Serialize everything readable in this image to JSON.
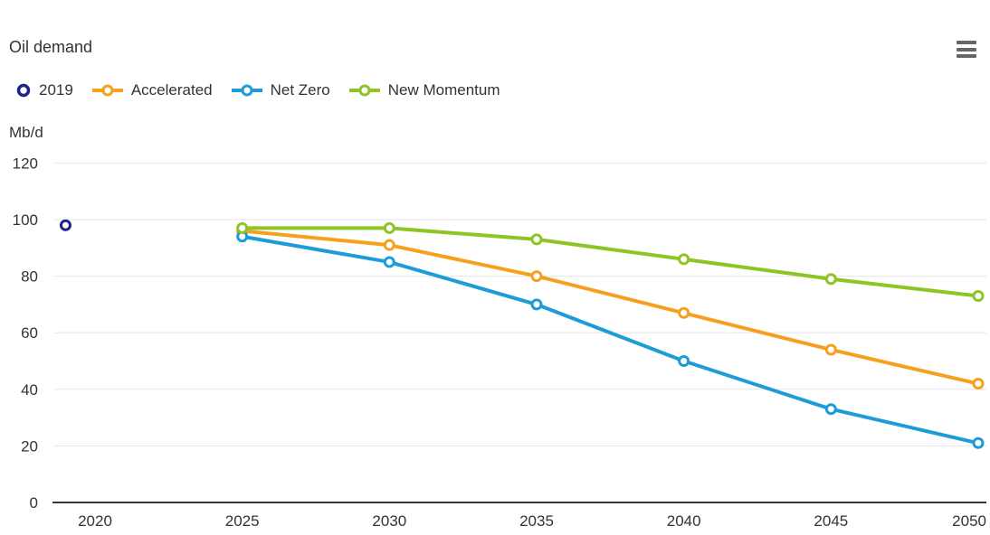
{
  "header": {
    "title": "Oil demand"
  },
  "legend": {
    "items": [
      {
        "label": "2019",
        "color": "#1F2487",
        "marker": "circle"
      },
      {
        "label": "Accelerated",
        "color": "#F7A01E",
        "marker": "line-circle"
      },
      {
        "label": "Net Zero",
        "color": "#1E9CD8",
        "marker": "line-circle"
      },
      {
        "label": "New Momentum",
        "color": "#8EC524",
        "marker": "line-circle"
      }
    ]
  },
  "chart_data": {
    "type": "line",
    "title": "Oil demand",
    "xlabel": "",
    "ylabel": "Mb/d",
    "ylim": [
      0,
      120
    ],
    "yticks": [
      0,
      20,
      40,
      60,
      80,
      100,
      120
    ],
    "xticks": [
      2020,
      2025,
      2030,
      2035,
      2040,
      2045,
      2050
    ],
    "grid": true,
    "legend_position": "top",
    "series": [
      {
        "name": "2019",
        "color": "#1F2487",
        "line": false,
        "x": [
          2019
        ],
        "values": [
          98
        ]
      },
      {
        "name": "Accelerated",
        "color": "#F7A01E",
        "line": true,
        "x": [
          2025,
          2030,
          2035,
          2040,
          2045,
          2050
        ],
        "values": [
          96,
          91,
          80,
          67,
          54,
          42
        ]
      },
      {
        "name": "Net Zero",
        "color": "#1E9CD8",
        "line": true,
        "x": [
          2025,
          2030,
          2035,
          2040,
          2045,
          2050
        ],
        "values": [
          94,
          85,
          70,
          50,
          33,
          21
        ]
      },
      {
        "name": "New Momentum",
        "color": "#8EC524",
        "line": true,
        "x": [
          2025,
          2030,
          2035,
          2040,
          2045,
          2050
        ],
        "values": [
          97,
          97,
          93,
          86,
          79,
          73
        ]
      }
    ]
  },
  "colors": {
    "text": "#333333",
    "gridline": "#E6E6E6",
    "axis_line": "#37383C",
    "menu_icon": "#666666",
    "marker_fill": "#FFFFFF"
  }
}
